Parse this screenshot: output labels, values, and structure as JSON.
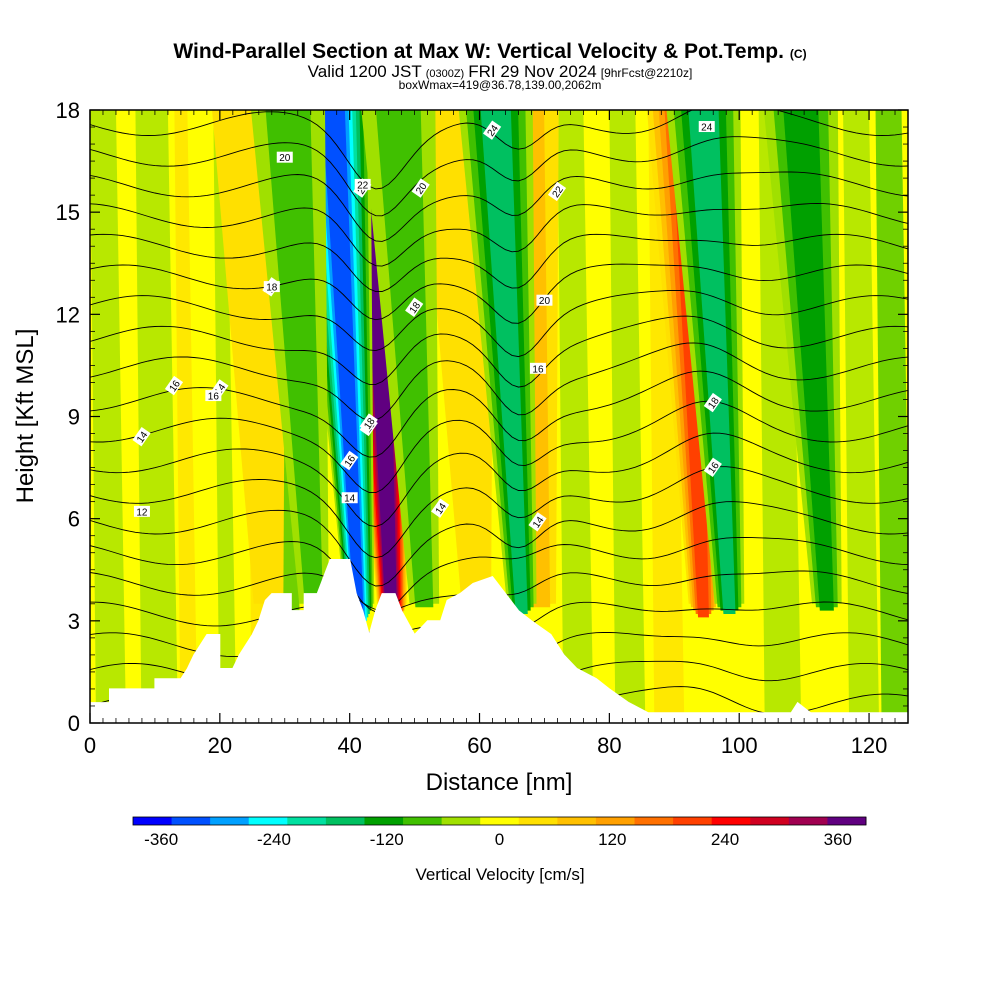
{
  "chart_data": {
    "type": "heatmap",
    "title": "Wind-Parallel Section at Max W: Vertical Velocity & Pot.Temp.",
    "title_mark": "(C)",
    "subtitle": {
      "valid": "Valid 1200 JST",
      "zulu": "(0300Z)",
      "date": "FRI 29 Nov 2024",
      "fcst": "[9hrFcst@2210z]"
    },
    "subtitle2": "boxWmax=419@36.78,139.00,2062m",
    "xlabel": "Distance [nm]",
    "ylabel": "Height [Kft MSL]",
    "xlim": [
      0,
      126
    ],
    "ylim": [
      0,
      18
    ],
    "x_ticks": [
      "0",
      "20",
      "40",
      "60",
      "80",
      "100",
      "120"
    ],
    "y_ticks": [
      "0",
      "3",
      "6",
      "9",
      "12",
      "15",
      "18"
    ],
    "colorbar": {
      "label": "Vertical Velocity [cm/s]",
      "range": [
        -390,
        390
      ],
      "tick_values": [
        -360,
        -240,
        -120,
        0,
        120,
        240,
        360
      ],
      "tick_labels": [
        "-360",
        "-240",
        "-120",
        "0",
        "120",
        "240",
        "360"
      ],
      "colors": [
        "#0000ff",
        "#0050ff",
        "#00a0ff",
        "#00ffff",
        "#00e0a0",
        "#00c060",
        "#00a000",
        "#40c000",
        "#a0e000",
        "#ffff00",
        "#ffe000",
        "#ffc000",
        "#ffa000",
        "#ff7000",
        "#ff4000",
        "#ff0000",
        "#d00020",
        "#a00050",
        "#600080"
      ]
    },
    "isentrope_labels": [
      "12",
      "14",
      "14",
      "16",
      "16",
      "16",
      "18",
      "18",
      "18",
      "20",
      "20",
      "20",
      "22",
      "22",
      "24",
      "24",
      "18",
      "16",
      "16",
      "14",
      "14",
      "20",
      "18",
      "16",
      "14"
    ],
    "updraft_bands": [
      {
        "x": 45,
        "value": 419
      },
      {
        "x": 93,
        "value": 220
      },
      {
        "x": 58,
        "value": 60
      },
      {
        "x": 68,
        "value": 80
      },
      {
        "x": 26,
        "value": 50
      }
    ],
    "downdraft_bands": [
      {
        "x": 40,
        "value": -340
      },
      {
        "x": 65,
        "value": -180
      },
      {
        "x": 97,
        "value": -160
      },
      {
        "x": 33,
        "value": -100
      },
      {
        "x": 50,
        "value": -80
      },
      {
        "x": 112,
        "value": -110
      }
    ],
    "terrain": [
      [
        0,
        0.6
      ],
      [
        3,
        0.6
      ],
      [
        3,
        1.0
      ],
      [
        10,
        1.0
      ],
      [
        10,
        1.3
      ],
      [
        14,
        1.3
      ],
      [
        15,
        1.6
      ],
      [
        16,
        2.0
      ],
      [
        18,
        2.6
      ],
      [
        20,
        2.6
      ],
      [
        20,
        1.6
      ],
      [
        22,
        1.6
      ],
      [
        23,
        2.0
      ],
      [
        25,
        2.6
      ],
      [
        26,
        3.0
      ],
      [
        27,
        3.6
      ],
      [
        28,
        3.8
      ],
      [
        31,
        3.8
      ],
      [
        31,
        3.3
      ],
      [
        33,
        3.3
      ],
      [
        33,
        3.8
      ],
      [
        35,
        3.8
      ],
      [
        36,
        4.3
      ],
      [
        37,
        4.8
      ],
      [
        40,
        4.8
      ],
      [
        41,
        3.8
      ],
      [
        42,
        3.3
      ],
      [
        43,
        2.6
      ],
      [
        44,
        3.3
      ],
      [
        45,
        3.8
      ],
      [
        47,
        3.8
      ],
      [
        48,
        3.3
      ],
      [
        50,
        2.6
      ],
      [
        52,
        3.0
      ],
      [
        54,
        3.0
      ],
      [
        55,
        3.6
      ],
      [
        57,
        3.8
      ],
      [
        59,
        4.1
      ],
      [
        62,
        4.3
      ],
      [
        64,
        3.8
      ],
      [
        66,
        3.3
      ],
      [
        68,
        3.0
      ],
      [
        71,
        2.6
      ],
      [
        73,
        2.0
      ],
      [
        75,
        1.6
      ],
      [
        78,
        1.3
      ],
      [
        80,
        1.0
      ],
      [
        83,
        0.6
      ],
      [
        86,
        0.3
      ],
      [
        108,
        0.3
      ],
      [
        109,
        0.6
      ],
      [
        111,
        0.3
      ],
      [
        126,
        0.3
      ],
      [
        126,
        0
      ],
      [
        0,
        0
      ]
    ]
  }
}
